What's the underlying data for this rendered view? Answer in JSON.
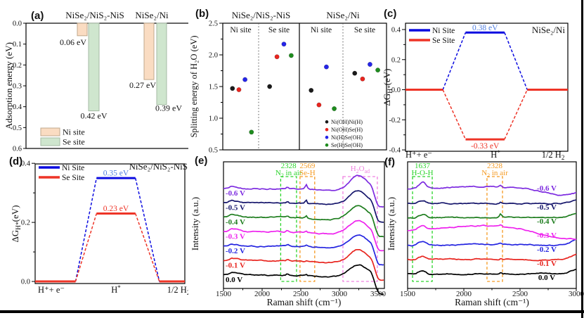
{
  "figure": {
    "background": "#ffffff",
    "border_color": "#000000",
    "panels": [
      {
        "letter": "(a)"
      },
      {
        "letter": "(b)"
      },
      {
        "letter": "(c)"
      },
      {
        "letter": "(d)"
      },
      {
        "letter": "(e)"
      },
      {
        "letter": "(f)"
      }
    ]
  },
  "chart_data": [
    {
      "panel": "a",
      "type": "bar",
      "ylabel": "Adsorption energy (eV)",
      "ylim": [
        0.0,
        0.6
      ],
      "y_inverted": true,
      "yticks": [
        "0.0",
        "0.1",
        "0.2",
        "0.3",
        "0.4",
        "0.5",
        "0.6"
      ],
      "groups": [
        {
          "title": "NiSe₂/NiS₂-NiS",
          "bars": [
            {
              "site": "Ni site",
              "value": 0.06,
              "label": "0.06 eV"
            },
            {
              "site": "Se site",
              "value": 0.42,
              "label": "0.42 eV"
            }
          ]
        },
        {
          "title": "NiSe₂/Ni",
          "bars": [
            {
              "site": "Ni site",
              "value": 0.27,
              "label": "0.27 eV"
            },
            {
              "site": "Se site",
              "value": 0.39,
              "label": "0.39 eV"
            }
          ]
        }
      ],
      "legend": [
        {
          "label": "Ni site",
          "fill": "#fadcc2",
          "stroke": "#c0a88c"
        },
        {
          "label": "Se site",
          "fill": "#cfe6ce",
          "stroke": "#a4bba4"
        }
      ]
    },
    {
      "panel": "b",
      "type": "scatter",
      "ylabel": "Splitting energy of H₂O (eV)",
      "ylim": [
        0.5,
        2.5
      ],
      "yticks": [
        "0.5",
        "1.0",
        "1.5",
        "2.0",
        "2.5"
      ],
      "group_titles": [
        "NiSe₂/NiS₂-NiS",
        "NiSe₂/Ni"
      ],
      "section_headers": [
        "Ni site",
        "Se site",
        "Ni site",
        "Se site"
      ],
      "series": [
        {
          "name": "Ni(OH)Ni(H)",
          "color": "#1a1a1a",
          "values": [
            1.47,
            1.5,
            1.44,
            1.71
          ]
        },
        {
          "name": "Ni(OH)Se(H)",
          "color": "#e8251f",
          "values": [
            1.45,
            1.97,
            1.21,
            1.62
          ]
        },
        {
          "name": "Ni(H)Se(OH)",
          "color": "#2525e8",
          "values": [
            1.61,
            2.17,
            1.81,
            1.85
          ]
        },
        {
          "name": "Se(H)Se(OH)",
          "color": "#1e8c1e",
          "values": [
            0.78,
            1.99,
            1.15,
            1.76
          ]
        }
      ]
    },
    {
      "panel": "c",
      "type": "line",
      "title": "NiSe₂/Ni",
      "ylabel_parts": [
        {
          "t": "ΔG"
        },
        {
          "t": "H*",
          "sub": true
        },
        {
          "t": "(eV)"
        }
      ],
      "yticks": [
        0.4,
        0.2,
        0.0,
        -0.2,
        -0.4
      ],
      "xtick_segments": [
        [
          {
            "t": "H⁺+ e⁻"
          }
        ],
        [
          {
            "t": "H"
          },
          {
            "t": "*",
            "sup": true
          }
        ],
        [
          {
            "t": "1/2 H"
          },
          {
            "t": "2",
            "sub": true
          }
        ]
      ],
      "series": [
        {
          "name": "Ni Site",
          "color": "#0a0ae0",
          "plateau": 0.38,
          "label": "0.38 eV",
          "label_color": "#4e7de0",
          "label_pos": "above"
        },
        {
          "name": "Se Site",
          "color": "#ee3427",
          "plateau": -0.33,
          "label": "-0.33 eV",
          "label_color": "#ee3427",
          "label_pos": "below"
        }
      ]
    },
    {
      "panel": "d",
      "type": "line",
      "title": "NiSe₂/NiS₂-NiS",
      "ylabel_parts": [
        {
          "t": "ΔG"
        },
        {
          "t": "H*",
          "sub": true
        },
        {
          "t": "(eV)"
        }
      ],
      "yticks": [
        0.4,
        0.2,
        0.0
      ],
      "xtick_segments": [
        [
          {
            "t": "H⁺+ e⁻"
          }
        ],
        [
          {
            "t": "H"
          },
          {
            "t": "*",
            "sup": true
          }
        ],
        [
          {
            "t": "1/2 H"
          },
          {
            "t": "2",
            "sub": true
          }
        ]
      ],
      "series": [
        {
          "name": "Ni Site",
          "color": "#0a0ae0",
          "plateau": 0.35,
          "label": "0.35 eV",
          "label_color": "#4e7de0",
          "label_pos": "above"
        },
        {
          "name": "Se Site",
          "color": "#ee3427",
          "plateau": 0.23,
          "label": "0.23 eV",
          "label_color": "#ee3427",
          "label_pos": "above"
        }
      ]
    },
    {
      "panel": "e",
      "type": "spectra",
      "xlabel": "Raman shift (cm⁻¹)",
      "ylabel": "Intensity (a.u.)",
      "xlim": [
        1500,
        3500
      ],
      "xticks": [
        1500,
        2000,
        2500,
        3000,
        3500
      ],
      "label_side": "left",
      "curves": [
        {
          "label": "0.0 V",
          "color": "#000000"
        },
        {
          "label": "-0.1 V",
          "color": "#e8251f"
        },
        {
          "label": "-0.2 V",
          "color": "#2424e0"
        },
        {
          "label": "-0.3 V",
          "color": "#ee22ee"
        },
        {
          "label": "-0.4 V",
          "color": "#1e7d1e"
        },
        {
          "label": "-0.5 V",
          "color": "#15156b"
        },
        {
          "label": "-0.6 V",
          "color": "#7d2be0"
        }
      ],
      "annotations": [
        {
          "lines": [
            [
              {
                "t": "2328"
              }
            ],
            [
              {
                "t": "N"
              },
              {
                "t": "2",
                "sub": true
              },
              {
                "t": " in air"
              }
            ]
          ],
          "color": "#2bd42b",
          "x1": 2240,
          "x2": 2445
        },
        {
          "lines": [
            [
              {
                "t": "2569"
              }
            ],
            [
              {
                "t": "Se-H"
              }
            ]
          ],
          "color": "#f59a23",
          "x1": 2490,
          "x2": 2680
        },
        {
          "lines": [
            [
              {
                "t": "H"
              },
              {
                "t": "2",
                "sub": true
              },
              {
                "t": "O"
              },
              {
                "t": "ad",
                "sub": true
              }
            ]
          ],
          "color": "#f080e0",
          "x1": 3045,
          "x2": 3490
        }
      ]
    },
    {
      "panel": "f",
      "type": "spectra",
      "xlabel": "Raman shift (cm⁻¹)",
      "ylabel": "Intensity (a.u.)",
      "xlim": [
        1500,
        3000
      ],
      "xticks": [
        1500,
        2000,
        2500,
        3000
      ],
      "label_side": "right",
      "curves": [
        {
          "label": "0.0 V",
          "color": "#000000"
        },
        {
          "label": "-0.1 V",
          "color": "#e8251f"
        },
        {
          "label": "-0.2 V",
          "color": "#2424e0"
        },
        {
          "label": "-0.3 V",
          "color": "#ee22ee"
        },
        {
          "label": "-0.4 V",
          "color": "#1e7d1e"
        },
        {
          "label": "-0.5 V",
          "color": "#15156b"
        },
        {
          "label": "-0.6 V",
          "color": "#7d2be0"
        }
      ],
      "annotations": [
        {
          "lines": [
            [
              {
                "t": "1637"
              }
            ],
            [
              {
                "t": "H-O-H"
              }
            ]
          ],
          "color": "#2bd42b",
          "x1": 1544,
          "x2": 1719
        },
        {
          "lines": [
            [
              {
                "t": "2328"
              }
            ],
            [
              {
                "t": "N"
              },
              {
                "t": "2",
                "sub": true
              },
              {
                "t": " in air"
              }
            ]
          ],
          "color": "#f59a23",
          "x1": 2206,
          "x2": 2344
        }
      ]
    }
  ]
}
